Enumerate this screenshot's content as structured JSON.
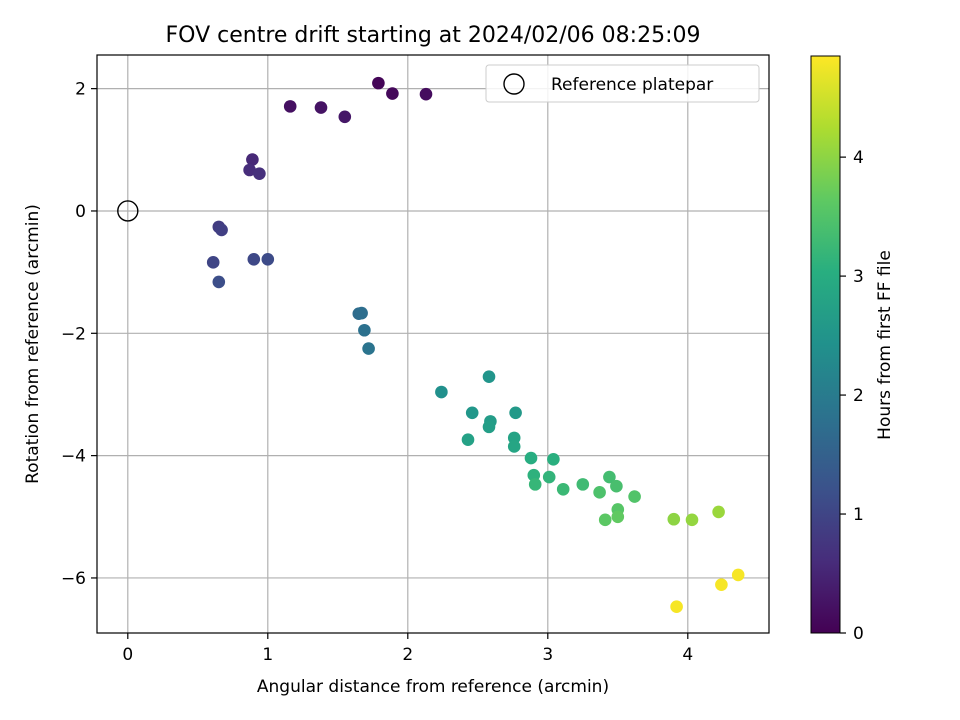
{
  "chart_data": {
    "type": "scatter",
    "title": "FOV centre drift starting at 2024/02/06 08:25:09",
    "xlabel": "Angular distance from reference (arcmin)",
    "ylabel": "Rotation from reference (arcmin)",
    "xlim": [
      -0.22,
      4.58
    ],
    "ylim": [
      -6.9,
      2.55
    ],
    "xticks": [
      0,
      1,
      2,
      3,
      4
    ],
    "yticks": [
      -6,
      -4,
      -2,
      0,
      2
    ],
    "grid": true,
    "legend": {
      "placement": "top-right",
      "entries": [
        "Reference platepar"
      ]
    },
    "reference_point": {
      "name": "Reference platepar",
      "x": 0,
      "y": 0,
      "marker": "open-circle"
    },
    "colorbar": {
      "label": "Hours from first FF file",
      "range": [
        0,
        4.85
      ],
      "ticks": [
        0,
        1,
        2,
        3,
        4
      ],
      "colormap": "viridis"
    },
    "points": [
      {
        "x": 1.79,
        "y": 2.09,
        "c": 0.05
      },
      {
        "x": 1.89,
        "y": 1.92,
        "c": 0.1
      },
      {
        "x": 2.13,
        "y": 1.91,
        "c": 0.15
      },
      {
        "x": 1.16,
        "y": 1.71,
        "c": 0.2
      },
      {
        "x": 1.38,
        "y": 1.69,
        "c": 0.25
      },
      {
        "x": 1.55,
        "y": 1.54,
        "c": 0.3
      },
      {
        "x": 0.89,
        "y": 0.84,
        "c": 0.55
      },
      {
        "x": 0.87,
        "y": 0.67,
        "c": 0.6
      },
      {
        "x": 0.94,
        "y": 0.61,
        "c": 0.65
      },
      {
        "x": 0.65,
        "y": -0.26,
        "c": 0.85
      },
      {
        "x": 0.67,
        "y": -0.31,
        "c": 0.9
      },
      {
        "x": 0.61,
        "y": -0.84,
        "c": 1.0
      },
      {
        "x": 0.9,
        "y": -0.79,
        "c": 1.05
      },
      {
        "x": 1.0,
        "y": -0.79,
        "c": 1.1
      },
      {
        "x": 0.65,
        "y": -1.16,
        "c": 1.15
      },
      {
        "x": 1.65,
        "y": -1.68,
        "c": 1.7
      },
      {
        "x": 1.67,
        "y": -1.67,
        "c": 1.75
      },
      {
        "x": 1.69,
        "y": -1.95,
        "c": 1.8
      },
      {
        "x": 1.72,
        "y": -2.25,
        "c": 1.85
      },
      {
        "x": 2.24,
        "y": -2.96,
        "c": 2.4
      },
      {
        "x": 2.58,
        "y": -2.71,
        "c": 2.5
      },
      {
        "x": 2.46,
        "y": -3.3,
        "c": 2.55
      },
      {
        "x": 2.77,
        "y": -3.3,
        "c": 2.6
      },
      {
        "x": 2.59,
        "y": -3.44,
        "c": 2.65
      },
      {
        "x": 2.58,
        "y": -3.53,
        "c": 2.7
      },
      {
        "x": 2.43,
        "y": -3.74,
        "c": 2.75
      },
      {
        "x": 2.76,
        "y": -3.71,
        "c": 2.8
      },
      {
        "x": 2.76,
        "y": -3.85,
        "c": 2.85
      },
      {
        "x": 2.88,
        "y": -4.04,
        "c": 3.0
      },
      {
        "x": 3.04,
        "y": -4.06,
        "c": 3.05
      },
      {
        "x": 2.9,
        "y": -4.32,
        "c": 3.1
      },
      {
        "x": 3.01,
        "y": -4.35,
        "c": 3.15
      },
      {
        "x": 2.91,
        "y": -4.47,
        "c": 3.2
      },
      {
        "x": 3.11,
        "y": -4.55,
        "c": 3.25
      },
      {
        "x": 3.25,
        "y": -4.47,
        "c": 3.3
      },
      {
        "x": 3.44,
        "y": -4.35,
        "c": 3.35
      },
      {
        "x": 3.49,
        "y": -4.5,
        "c": 3.4
      },
      {
        "x": 3.37,
        "y": -4.6,
        "c": 3.45
      },
      {
        "x": 3.62,
        "y": -4.67,
        "c": 3.5
      },
      {
        "x": 3.5,
        "y": -4.88,
        "c": 3.55
      },
      {
        "x": 3.41,
        "y": -5.05,
        "c": 3.6
      },
      {
        "x": 3.5,
        "y": -5.0,
        "c": 3.65
      },
      {
        "x": 3.9,
        "y": -5.04,
        "c": 4.0
      },
      {
        "x": 4.03,
        "y": -5.05,
        "c": 4.05
      },
      {
        "x": 4.22,
        "y": -4.92,
        "c": 4.1
      },
      {
        "x": 4.36,
        "y": -5.95,
        "c": 4.8
      },
      {
        "x": 4.24,
        "y": -6.11,
        "c": 4.8
      },
      {
        "x": 3.92,
        "y": -6.47,
        "c": 4.8
      }
    ]
  }
}
